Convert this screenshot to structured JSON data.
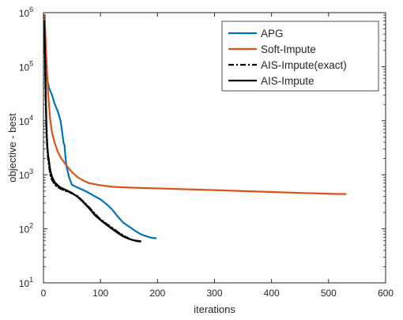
{
  "chart_data": {
    "type": "line",
    "title": "",
    "xlabel": "iterations",
    "ylabel": "objective - best",
    "xlim": [
      0,
      600
    ],
    "ylim": [
      10,
      1000000
    ],
    "yscale": "log",
    "grid": false,
    "legend_position": "top-right",
    "x_ticks": [
      0,
      100,
      200,
      300,
      400,
      500,
      600
    ],
    "x_tick_labels": [
      "0",
      "100",
      "200",
      "300",
      "400",
      "500",
      "600"
    ],
    "y_ticks": [
      10,
      100,
      1000,
      10000,
      100000,
      1000000
    ],
    "y_tick_labels": [
      {
        "base": "10",
        "exp": "1"
      },
      {
        "base": "10",
        "exp": "2"
      },
      {
        "base": "10",
        "exp": "3"
      },
      {
        "base": "10",
        "exp": "4"
      },
      {
        "base": "10",
        "exp": "5"
      },
      {
        "base": "10",
        "exp": "6"
      }
    ],
    "series": [
      {
        "name": "APG",
        "color": "#0072BD",
        "dash": "solid",
        "x": [
          1,
          3,
          6,
          10,
          15,
          20,
          25,
          30,
          33,
          35,
          37,
          38,
          40,
          45,
          50,
          60,
          70,
          80,
          90,
          100,
          110,
          120,
          130,
          140,
          150,
          160,
          170,
          180,
          190,
          197
        ],
        "y": [
          800000,
          180000,
          60000,
          40000,
          30000,
          20000,
          15000,
          10000,
          6000,
          4000,
          3500,
          2500,
          1500,
          900,
          650,
          580,
          520,
          460,
          400,
          350,
          290,
          230,
          170,
          130,
          110,
          93,
          80,
          73,
          68,
          67
        ]
      },
      {
        "name": "Soft-Impute",
        "color": "#D95319",
        "dash": "solid",
        "x": [
          2,
          3,
          4,
          5,
          6,
          7,
          8,
          10,
          12,
          15,
          20,
          25,
          30,
          40,
          50,
          60,
          70,
          80,
          100,
          120,
          150,
          200,
          300,
          400,
          500,
          530
        ],
        "y": [
          900000,
          500000,
          250000,
          150000,
          90000,
          55000,
          35000,
          18000,
          10000,
          6000,
          3800,
          2700,
          2100,
          1500,
          1120,
          900,
          780,
          700,
          640,
          600,
          580,
          560,
          520,
          480,
          445,
          440
        ]
      },
      {
        "name": "AIS-Impute(exact)",
        "color": "#000000",
        "dash": "dashdot",
        "x": [
          1,
          2,
          3,
          4,
          5,
          6,
          7,
          8,
          10,
          12,
          15,
          20,
          25,
          30,
          40,
          50,
          60,
          70,
          80,
          90,
          100,
          110,
          120,
          130,
          140,
          150,
          160,
          170
        ],
        "y": [
          600000,
          300000,
          80000,
          20000,
          7000,
          4000,
          2700,
          2000,
          1400,
          1000,
          800,
          660,
          590,
          550,
          500,
          450,
          400,
          320,
          250,
          190,
          150,
          125,
          105,
          88,
          75,
          66,
          60,
          58
        ]
      },
      {
        "name": "AIS-Impute",
        "color": "#000000",
        "dash": "solid",
        "x": [
          1,
          2,
          3,
          4,
          5,
          6,
          7,
          8,
          10,
          12,
          15,
          20,
          25,
          30,
          40,
          50,
          60,
          70,
          80,
          90,
          100,
          110,
          120,
          130,
          140,
          150,
          160,
          170
        ],
        "y": [
          700000,
          400000,
          120000,
          30000,
          10000,
          5000,
          3300,
          2400,
          1700,
          1200,
          920,
          720,
          640,
          580,
          520,
          460,
          390,
          310,
          240,
          180,
          145,
          120,
          100,
          84,
          72,
          65,
          61,
          59
        ]
      }
    ]
  }
}
